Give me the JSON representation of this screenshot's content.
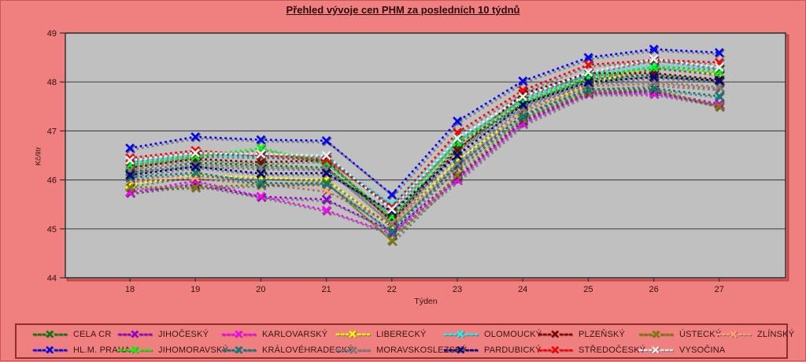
{
  "title": "Přehled vývoje cen PHM za posledních 10 týdnů",
  "chart_data": {
    "type": "line",
    "line_style": "dotted",
    "marker": "x",
    "x": [
      18,
      19,
      20,
      21,
      22,
      23,
      24,
      25,
      26,
      27
    ],
    "xlabel": "Týden",
    "ylabel": "Kč/litr",
    "ylim": [
      44,
      49
    ],
    "yticks": [
      44,
      45,
      46,
      47,
      48,
      49
    ],
    "grid": true,
    "legend_position": "bottom",
    "series": [
      {
        "name": "CELA CR",
        "color": "#008000",
        "values": [
          46.15,
          46.35,
          46.3,
          46.25,
          45.2,
          46.65,
          47.55,
          48.05,
          48.15,
          48.02
        ]
      },
      {
        "name": "JIHOČESKÝ",
        "color": "#9400D3",
        "values": [
          45.75,
          45.9,
          45.66,
          45.6,
          44.95,
          46.05,
          47.2,
          47.8,
          47.8,
          47.55
        ]
      },
      {
        "name": "KARLOVARSKÝ",
        "color": "#FF00FF",
        "values": [
          45.74,
          45.98,
          45.66,
          45.38,
          44.9,
          46.0,
          47.15,
          47.76,
          47.76,
          47.53
        ]
      },
      {
        "name": "LIBERECKÝ",
        "color": "#FFFF00",
        "values": [
          45.9,
          46.1,
          46.05,
          46.0,
          45.05,
          46.4,
          47.37,
          47.95,
          48.32,
          48.16
        ]
      },
      {
        "name": "OLOMOUCKÝ",
        "color": "#00FFFF",
        "values": [
          46.35,
          46.5,
          46.48,
          46.45,
          45.5,
          46.8,
          47.64,
          48.15,
          48.35,
          48.28
        ]
      },
      {
        "name": "PLZEŇSKÝ",
        "color": "#800000",
        "values": [
          46.25,
          46.43,
          46.36,
          46.4,
          45.15,
          46.6,
          47.76,
          48.18,
          48.18,
          48.05
        ]
      },
      {
        "name": "ÚSTECKÝ",
        "color": "#808000",
        "values": [
          45.85,
          45.85,
          45.9,
          45.95,
          44.76,
          46.1,
          47.25,
          47.8,
          47.85,
          47.5
        ]
      },
      {
        "name": "ZLÍNSKÝ",
        "color": "#FFA07A",
        "values": [
          46.0,
          46.05,
          45.95,
          45.79,
          45.12,
          46.24,
          47.4,
          47.88,
          47.95,
          47.87
        ]
      },
      {
        "name": "HL.M. PRAHA",
        "color": "#0000FF",
        "values": [
          46.65,
          46.88,
          46.82,
          46.8,
          45.7,
          47.2,
          48.02,
          48.5,
          48.67,
          48.6
        ]
      },
      {
        "name": "JIHOMORAVSKÝ",
        "color": "#00FF00",
        "values": [
          46.3,
          46.48,
          46.65,
          46.35,
          45.25,
          46.77,
          47.6,
          48.1,
          48.3,
          48.2
        ]
      },
      {
        "name": "KRÁLOVÉHRADECKÝ",
        "color": "#008080",
        "values": [
          46.05,
          46.15,
          45.94,
          45.92,
          44.94,
          46.3,
          47.3,
          47.85,
          47.87,
          47.71
        ]
      },
      {
        "name": "MORAVSKOSLEZSKÝ",
        "color": "#808080",
        "values": [
          46.2,
          46.3,
          46.25,
          46.23,
          45.1,
          46.34,
          47.45,
          47.95,
          48.0,
          47.9
        ]
      },
      {
        "name": "PARDUBICKÝ",
        "color": "#000080",
        "values": [
          46.1,
          46.27,
          46.13,
          46.14,
          45.35,
          46.5,
          47.54,
          48.0,
          48.1,
          48.03
        ]
      },
      {
        "name": "STŘEDOČESKÝ",
        "color": "#FF0000",
        "values": [
          46.45,
          46.6,
          46.5,
          46.42,
          45.45,
          46.97,
          47.83,
          48.35,
          48.45,
          48.4
        ]
      },
      {
        "name": "VYSOČINA",
        "color": "#EDEDED",
        "values": [
          46.4,
          46.55,
          46.53,
          46.5,
          45.4,
          46.85,
          47.7,
          48.2,
          48.47,
          48.3
        ]
      }
    ],
    "legend_rows": [
      [
        "CELA CR",
        "JIHOČESKÝ",
        "KARLOVARSKÝ",
        "LIBERECKÝ",
        "OLOMOUCKÝ",
        "PLZEŇSKÝ",
        "ÚSTECKÝ",
        "ZLÍNSKÝ"
      ],
      [
        "HL.M. PRAHA",
        "JIHOMORAVSKÝ",
        "KRÁLOVÉHRADECKÝ",
        "MORAVSKOSLEZSKÝ",
        "PARDUBICKÝ",
        "STŘEDOČESKÝ",
        "VYSOČINA"
      ]
    ]
  },
  "colors": {
    "background": "#F08080",
    "plot_background": "#C0C0C0",
    "grid": "#4D4D4D",
    "axis": "#333333",
    "tick_text": "#2E1212",
    "title_text": "#2E0808",
    "legend_border": "#8B3030",
    "plot_shadow": "#BE4A4A",
    "series_shadow": "rgba(60,60,60,0.5)"
  }
}
